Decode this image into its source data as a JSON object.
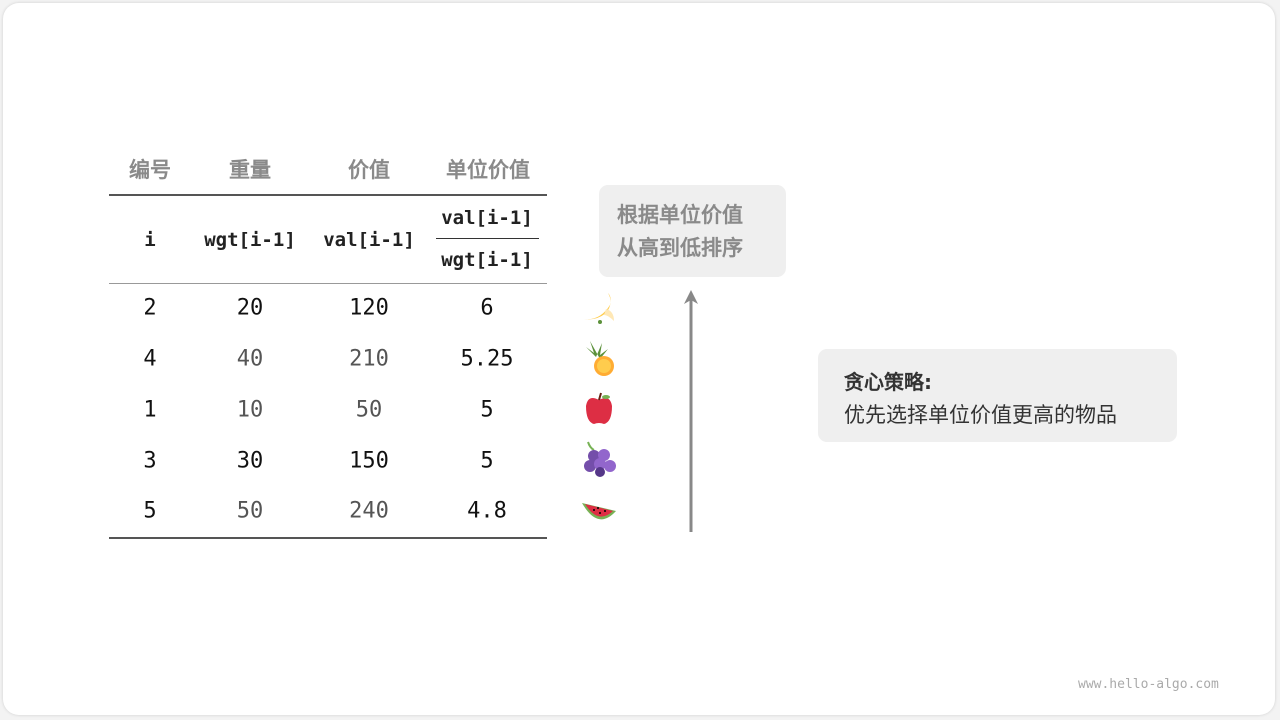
{
  "headers": {
    "id": "编号",
    "weight": "重量",
    "value": "价值",
    "unit_value": "单位价值"
  },
  "symbols": {
    "id": "i",
    "weight": "wgt[i-1]",
    "value": "val[i-1]",
    "unit_numerator": "val[i-1]",
    "unit_denominator": "wgt[i-1]"
  },
  "rows": [
    {
      "id": "2",
      "weight": "20",
      "value": "120",
      "unit_value": "6",
      "fruit": "banana-icon",
      "muted": false
    },
    {
      "id": "4",
      "weight": "40",
      "value": "210",
      "unit_value": "5.25",
      "fruit": "pineapple-icon",
      "muted": true
    },
    {
      "id": "1",
      "weight": "10",
      "value": "50",
      "unit_value": "5",
      "fruit": "apple-icon",
      "muted": true
    },
    {
      "id": "3",
      "weight": "30",
      "value": "150",
      "unit_value": "5",
      "fruit": "grapes-icon",
      "muted": false
    },
    {
      "id": "5",
      "weight": "50",
      "value": "240",
      "unit_value": "4.8",
      "fruit": "watermelon-icon",
      "muted": true
    }
  ],
  "sort_note": {
    "line1": "根据单位价值",
    "line2": "从高到低排序"
  },
  "strategy": {
    "title": "贪心策略:",
    "text": "优先选择单位价值更高的物品"
  },
  "watermark": "www.hello-algo.com",
  "colors": {
    "arrow": "#888888",
    "box": "#efefef",
    "header_text": "#8a8a8a"
  }
}
